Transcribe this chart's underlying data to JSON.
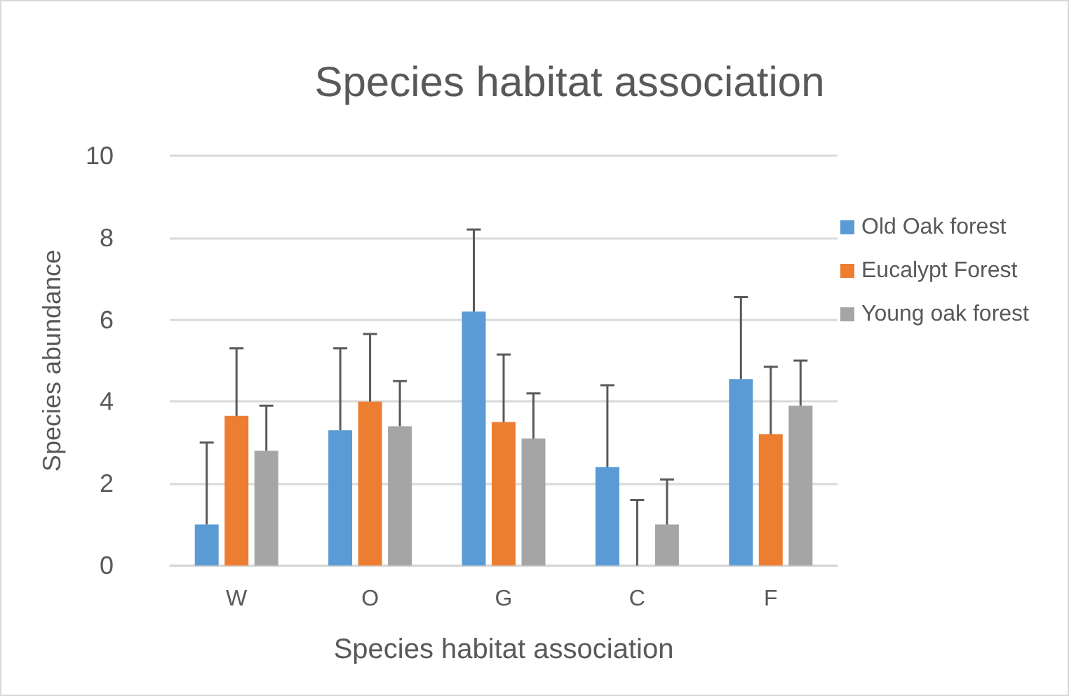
{
  "chart_data": {
    "type": "bar",
    "title": "Species habitat association",
    "xlabel": "Species habitat association",
    "ylabel": "Species abundance",
    "categories": [
      "W",
      "O",
      "G",
      "C",
      "F"
    ],
    "series": [
      {
        "name": "Old Oak forest",
        "color": "#5b9bd5",
        "values": [
          1.0,
          3.3,
          6.2,
          2.4,
          4.55
        ],
        "errors": [
          [
            1.0,
            3.0
          ],
          [
            3.3,
            5.3
          ],
          [
            6.2,
            8.2
          ],
          [
            2.4,
            4.4
          ],
          [
            4.55,
            6.55
          ]
        ]
      },
      {
        "name": "Eucalypt Forest",
        "color": "#ed7d31",
        "values": [
          3.65,
          4.0,
          3.5,
          0,
          3.2
        ],
        "errors": [
          [
            3.65,
            5.3
          ],
          [
            4.0,
            5.65
          ],
          [
            3.5,
            5.15
          ],
          [
            0,
            1.6
          ],
          [
            3.2,
            4.85
          ]
        ]
      },
      {
        "name": "Young oak forest",
        "color": "#a5a5a5",
        "values": [
          2.8,
          3.4,
          3.1,
          1.0,
          3.9
        ],
        "errors": [
          [
            2.8,
            3.9
          ],
          [
            3.4,
            4.5
          ],
          [
            3.1,
            4.2
          ],
          [
            1.0,
            2.1
          ],
          [
            3.9,
            5.0
          ]
        ]
      }
    ],
    "ylim": [
      0,
      10
    ],
    "yticks": [
      0,
      2,
      4,
      6,
      8,
      10
    ],
    "grid": "y",
    "legend": "right"
  }
}
